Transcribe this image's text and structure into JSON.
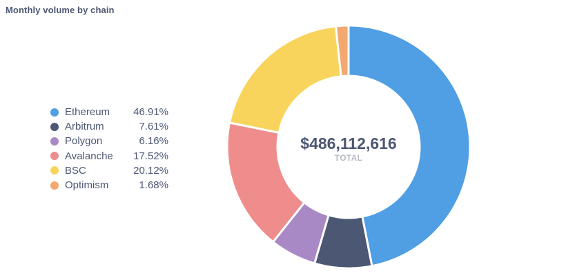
{
  "chart_data": {
    "type": "pie",
    "title": "Monthly volume by chain",
    "categories": [
      "Ethereum",
      "Arbitrum",
      "Polygon",
      "Avalanche",
      "BSC",
      "Optimism"
    ],
    "values": [
      46.91,
      7.61,
      6.16,
      17.52,
      20.12,
      1.68
    ],
    "percent_labels": [
      "46.91%",
      "7.61%",
      "6.16%",
      "17.52%",
      "20.12%",
      "1.68%"
    ],
    "colors": [
      "#509ee3",
      "#4c5773",
      "#a989c5",
      "#ef8c8c",
      "#f9d45c",
      "#f2a86f"
    ],
    "total_value": 486112616,
    "total_display": "$486,112,616",
    "total_label": "TOTAL",
    "legend_position": "left",
    "donut": true
  }
}
